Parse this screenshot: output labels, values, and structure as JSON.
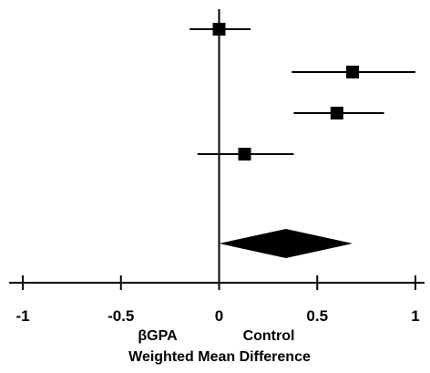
{
  "chart_data": {
    "type": "scatter",
    "subtype": "forest-plot",
    "xlabel": "Weighted Mean Difference",
    "xlim": [
      -1,
      1
    ],
    "x_ticks": [
      -1,
      -0.5,
      0,
      0.5,
      1
    ],
    "x_tick_labels": [
      "-1",
      "-0.5",
      "0",
      "0.5",
      "1"
    ],
    "favours_left_label": "βGPA",
    "favours_right_label": "Control",
    "studies": [
      {
        "estimate": 0.0,
        "ci_low": -0.15,
        "ci_high": 0.16
      },
      {
        "estimate": 0.68,
        "ci_low": 0.37,
        "ci_high": 1.0
      },
      {
        "estimate": 0.6,
        "ci_low": 0.38,
        "ci_high": 0.84
      },
      {
        "estimate": 0.13,
        "ci_low": -0.11,
        "ci_high": 0.38
      }
    ],
    "pooled": {
      "estimate": 0.34,
      "ci_low": 0.0,
      "ci_high": 0.68
    },
    "grid": false,
    "legend": "none",
    "colors": {
      "marks": "#000000",
      "background": "#ffffff"
    }
  }
}
